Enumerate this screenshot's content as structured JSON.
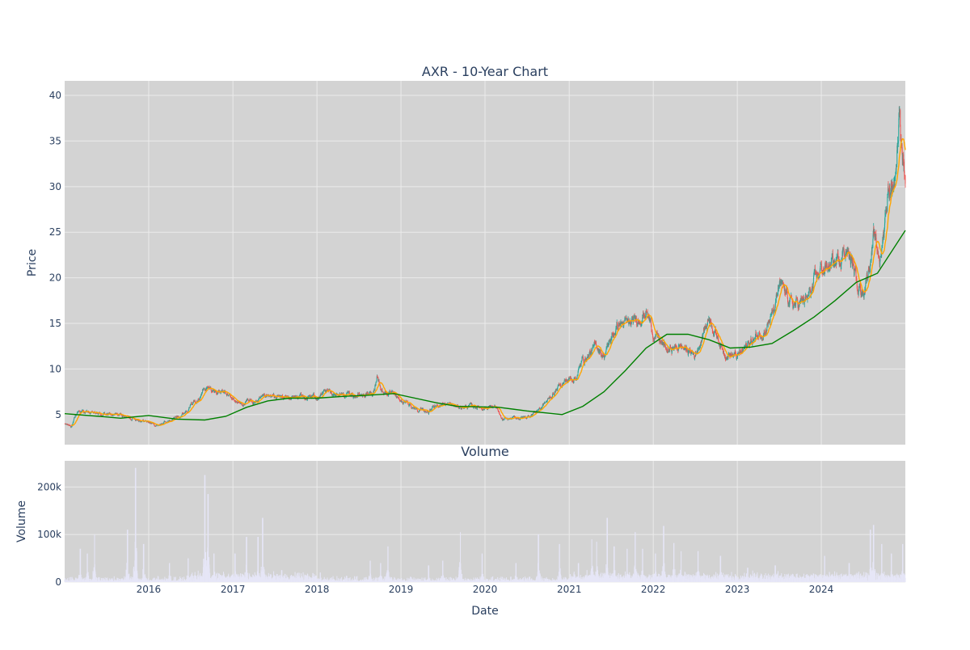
{
  "chart_data": [
    {
      "type": "candlestick",
      "title": "AXR - 10-Year Chart",
      "ylabel": "Price",
      "xlim": [
        "2015-01-01",
        "2024-12-31"
      ],
      "ylim": [
        1.7,
        41.6
      ],
      "yticks": [
        5,
        10,
        15,
        20,
        25,
        30,
        35,
        40
      ],
      "grid": true,
      "legend": "none",
      "colors": {
        "up": "#26a69a",
        "down": "#ef5350",
        "ma_short": "#ffa500",
        "ma_long": "#008000",
        "background": "#d3d3d3",
        "grid": "#ebebeb"
      },
      "price_path": [
        [
          "2015-01-01",
          3.9
        ],
        [
          "2015-02-01",
          3.8
        ],
        [
          "2015-03-01",
          5.4
        ],
        [
          "2015-05-01",
          5.1
        ],
        [
          "2015-07-01",
          5.0
        ],
        [
          "2015-09-01",
          4.9
        ],
        [
          "2015-11-01",
          4.6
        ],
        [
          "2016-01-01",
          4.2
        ],
        [
          "2016-02-01",
          3.8
        ],
        [
          "2016-04-01",
          4.3
        ],
        [
          "2016-06-01",
          5.2
        ],
        [
          "2016-07-01",
          6.0
        ],
        [
          "2016-08-01",
          7.0
        ],
        [
          "2016-09-01",
          7.9
        ],
        [
          "2016-11-01",
          7.5
        ],
        [
          "2016-12-01",
          7.2
        ],
        [
          "2017-02-01",
          6.2
        ],
        [
          "2017-04-01",
          6.4
        ],
        [
          "2017-06-01",
          6.8
        ],
        [
          "2017-08-01",
          6.9
        ],
        [
          "2017-10-01",
          6.8
        ],
        [
          "2018-01-01",
          7.0
        ],
        [
          "2018-03-01",
          7.4
        ],
        [
          "2018-05-01",
          7.2
        ],
        [
          "2018-07-01",
          7.1
        ],
        [
          "2018-09-01",
          7.3
        ],
        [
          "2018-09-20",
          9.5
        ],
        [
          "2018-10-05",
          7.8
        ],
        [
          "2018-12-01",
          7.0
        ],
        [
          "2019-01-01",
          6.5
        ],
        [
          "2019-03-01",
          5.8
        ],
        [
          "2019-05-01",
          5.3
        ],
        [
          "2019-07-01",
          6.3
        ],
        [
          "2019-09-01",
          5.8
        ],
        [
          "2019-11-01",
          5.9
        ],
        [
          "2020-01-01",
          5.8
        ],
        [
          "2020-02-15",
          5.9
        ],
        [
          "2020-03-15",
          4.3
        ],
        [
          "2020-05-01",
          4.6
        ],
        [
          "2020-07-01",
          4.7
        ],
        [
          "2020-09-01",
          5.8
        ],
        [
          "2020-10-01",
          6.6
        ],
        [
          "2020-12-01",
          8.5
        ],
        [
          "2021-02-01",
          9.2
        ],
        [
          "2021-03-01",
          11.0
        ],
        [
          "2021-05-01",
          12.5
        ],
        [
          "2021-06-01",
          11.5
        ],
        [
          "2021-08-01",
          15.0
        ],
        [
          "2021-10-01",
          14.8
        ],
        [
          "2021-12-01",
          16.5
        ],
        [
          "2022-01-01",
          14.0
        ],
        [
          "2022-03-01",
          12.0
        ],
        [
          "2022-05-01",
          12.5
        ],
        [
          "2022-07-01",
          11.5
        ],
        [
          "2022-09-01",
          15.8
        ],
        [
          "2022-11-01",
          12.0
        ],
        [
          "2023-01-01",
          11.3
        ],
        [
          "2023-03-01",
          13.0
        ],
        [
          "2023-05-01",
          14.5
        ],
        [
          "2023-06-15",
          16.5
        ],
        [
          "2023-07-01",
          19.0
        ],
        [
          "2023-09-01",
          17.0
        ],
        [
          "2023-11-01",
          17.5
        ],
        [
          "2024-01-01",
          21.0
        ],
        [
          "2024-03-01",
          21.5
        ],
        [
          "2024-04-15",
          23.5
        ],
        [
          "2024-06-01",
          20.0
        ],
        [
          "2024-07-01",
          18.5
        ],
        [
          "2024-08-15",
          24.0
        ],
        [
          "2024-09-15",
          22.0
        ],
        [
          "2024-10-15",
          29.5
        ],
        [
          "2024-11-15",
          31.0
        ],
        [
          "2024-12-05",
          38.0
        ],
        [
          "2024-12-31",
          31.0
        ]
      ],
      "series": [
        {
          "values": [
            [
              "2015-01-01",
              5.1
            ],
            [
              "2015-06-01",
              4.8
            ],
            [
              "2015-09-01",
              4.6
            ],
            [
              "2016-01-01",
              4.9
            ],
            [
              "2016-05-01",
              4.5
            ],
            [
              "2016-09-01",
              4.4
            ],
            [
              "2016-12-01",
              4.8
            ],
            [
              "2017-03-01",
              5.8
            ],
            [
              "2017-06-01",
              6.5
            ],
            [
              "2017-09-01",
              6.8
            ],
            [
              "2018-01-01",
              6.8
            ],
            [
              "2018-05-01",
              7.0
            ],
            [
              "2018-08-01",
              7.1
            ],
            [
              "2018-12-01",
              7.3
            ],
            [
              "2019-06-01",
              6.3
            ],
            [
              "2019-09-01",
              5.9
            ],
            [
              "2020-03-01",
              5.8
            ],
            [
              "2020-07-01",
              5.4
            ],
            [
              "2020-12-01",
              5.0
            ],
            [
              "2021-03-01",
              5.9
            ],
            [
              "2021-06-01",
              7.5
            ],
            [
              "2021-09-01",
              9.8
            ],
            [
              "2021-12-01",
              12.3
            ],
            [
              "2022-03-01",
              13.8
            ],
            [
              "2022-06-01",
              13.8
            ],
            [
              "2022-09-01",
              13.2
            ],
            [
              "2022-12-01",
              12.3
            ],
            [
              "2023-03-01",
              12.4
            ],
            [
              "2023-06-01",
              12.8
            ],
            [
              "2023-09-01",
              14.2
            ],
            [
              "2023-12-01",
              15.7
            ],
            [
              "2024-03-01",
              17.5
            ],
            [
              "2024-06-01",
              19.5
            ],
            [
              "2024-09-01",
              20.5
            ],
            [
              "2024-12-31",
              25.2
            ]
          ]
        }
      ]
    },
    {
      "type": "bar",
      "title": "Volume",
      "xlabel": "Date",
      "ylabel": "Volume",
      "xlim": [
        "2015-01-01",
        "2024-12-31"
      ],
      "ylim": [
        0,
        255000
      ],
      "yticks": [
        0,
        100000,
        200000
      ],
      "ytick_labels": [
        "0",
        "100k",
        "200k"
      ],
      "xticks": [
        "2016",
        "2017",
        "2018",
        "2019",
        "2020",
        "2021",
        "2022",
        "2023",
        "2024"
      ],
      "grid": true,
      "colors": {
        "bar": "#e6e6f7",
        "background": "#d3d3d3",
        "grid": "#ebebeb"
      },
      "spikes": [
        [
          "2015-03-10",
          70000
        ],
        [
          "2015-04-10",
          60000
        ],
        [
          "2015-05-10",
          100000
        ],
        [
          "2015-10-01",
          110000
        ],
        [
          "2015-11-05",
          240000
        ],
        [
          "2015-12-10",
          80000
        ],
        [
          "2016-04-01",
          40000
        ],
        [
          "2016-06-20",
          50000
        ],
        [
          "2016-09-01",
          225000
        ],
        [
          "2016-09-15",
          185000
        ],
        [
          "2016-10-10",
          60000
        ],
        [
          "2017-01-10",
          60000
        ],
        [
          "2017-03-01",
          95000
        ],
        [
          "2017-04-20",
          95000
        ],
        [
          "2017-05-10",
          135000
        ],
        [
          "2017-08-01",
          25000
        ],
        [
          "2018-01-15",
          20000
        ],
        [
          "2018-08-20",
          45000
        ],
        [
          "2018-10-05",
          40000
        ],
        [
          "2018-11-05",
          75000
        ],
        [
          "2019-05-01",
          35000
        ],
        [
          "2019-07-01",
          45000
        ],
        [
          "2019-09-15",
          105000
        ],
        [
          "2019-12-20",
          60000
        ],
        [
          "2020-05-15",
          40000
        ],
        [
          "2020-08-20",
          100000
        ],
        [
          "2020-11-20",
          80000
        ],
        [
          "2021-02-10",
          40000
        ],
        [
          "2021-04-10",
          90000
        ],
        [
          "2021-05-01",
          85000
        ],
        [
          "2021-06-15",
          135000
        ],
        [
          "2021-07-15",
          75000
        ],
        [
          "2021-09-10",
          70000
        ],
        [
          "2021-10-15",
          105000
        ],
        [
          "2021-11-15",
          70000
        ],
        [
          "2022-01-10",
          60000
        ],
        [
          "2022-02-15",
          118000
        ],
        [
          "2022-04-01",
          82000
        ],
        [
          "2022-05-01",
          65000
        ],
        [
          "2022-07-15",
          65000
        ],
        [
          "2022-10-20",
          55000
        ],
        [
          "2023-02-15",
          30000
        ],
        [
          "2023-06-15",
          35000
        ],
        [
          "2024-01-15",
          55000
        ],
        [
          "2024-05-01",
          40000
        ],
        [
          "2024-08-01",
          110000
        ],
        [
          "2024-08-15",
          120000
        ],
        [
          "2024-09-20",
          80000
        ],
        [
          "2024-11-01",
          60000
        ],
        [
          "2024-12-20",
          80000
        ]
      ]
    }
  ]
}
